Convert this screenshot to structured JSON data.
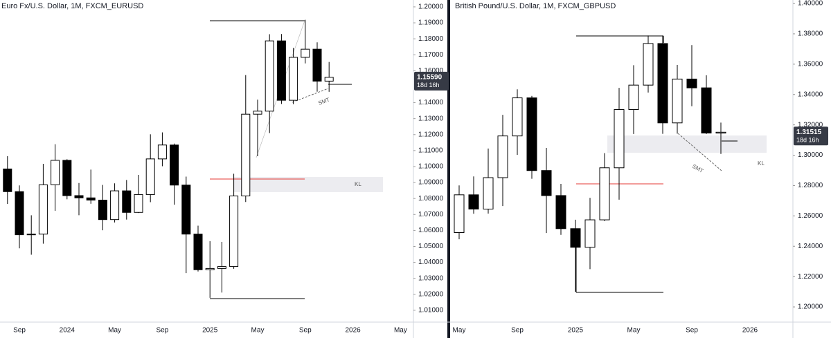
{
  "chart_data": [
    {
      "type": "candlestick",
      "title": "Euro Fx/U.S. Dollar, 1M, FXCM_EURUSD",
      "categories": [
        null,
        "Sep",
        null,
        null,
        null,
        "2024",
        null,
        null,
        null,
        "May",
        null,
        null,
        null,
        "Sep",
        null,
        null,
        null,
        "2025",
        null,
        null,
        null,
        "May",
        null,
        null,
        null,
        "Sep",
        null,
        null,
        null,
        "2026",
        null,
        null,
        null,
        "May"
      ],
      "open": [
        1.0985,
        1.0843,
        1.0573,
        1.0577,
        1.0886,
        1.1039,
        1.0818,
        1.0804,
        1.079,
        1.0668,
        1.0848,
        1.0713,
        1.0825,
        1.1048,
        1.1135,
        1.0884,
        1.0577,
        1.0354,
        1.0362,
        1.0374,
        1.0816,
        1.1328,
        1.1347,
        1.1787,
        1.1415,
        1.1684,
        1.1735,
        1.1535,
        null,
        null,
        null,
        null,
        null,
        null
      ],
      "high": [
        1.1065,
        1.0882,
        1.0695,
        1.1017,
        1.114,
        1.1046,
        1.0897,
        1.0981,
        1.0885,
        1.0895,
        1.0916,
        1.0948,
        1.1202,
        1.1214,
        1.1144,
        1.0937,
        1.063,
        1.0533,
        1.0528,
        1.0955,
        1.1573,
        1.1419,
        1.1829,
        1.183,
        1.1743,
        1.1919,
        1.1778,
        1.1655,
        null,
        null,
        null,
        null,
        null,
        null
      ],
      "low": [
        1.0766,
        1.0488,
        1.0448,
        1.0517,
        1.0723,
        1.0795,
        1.0695,
        1.0767,
        1.0601,
        1.065,
        1.0668,
        1.0709,
        1.0777,
        1.1002,
        1.0761,
        1.0333,
        1.0343,
        1.0178,
        1.0211,
        1.036,
        1.0778,
        1.1065,
        1.121,
        1.1392,
        1.1391,
        1.1646,
        1.1469,
        1.1468,
        null,
        null,
        null,
        null,
        null,
        null
      ],
      "close": [
        1.0843,
        1.0573,
        1.0577,
        1.0886,
        1.1039,
        1.0818,
        1.0804,
        1.079,
        1.0668,
        1.0848,
        1.0713,
        1.0825,
        1.1048,
        1.1135,
        1.0884,
        1.0577,
        1.0354,
        1.0362,
        1.0374,
        1.0816,
        1.1328,
        1.1347,
        1.1787,
        1.1415,
        1.1684,
        1.1735,
        1.1535,
        1.1559,
        null,
        null,
        null,
        null,
        null,
        null
      ],
      "up_color": "#ffffff",
      "down_color": "#000000",
      "ylim": [
        1.0026,
        1.2043
      ],
      "yticks": [
        {
          "value": 1.2,
          "label": "1.20000"
        },
        {
          "value": 1.19,
          "label": "1.19000"
        },
        {
          "value": 1.18,
          "label": "1.18000"
        },
        {
          "value": 1.17,
          "label": "1.17000"
        },
        {
          "value": 1.16,
          "label": "1.16000"
        },
        {
          "value": 1.14,
          "label": "1.14000"
        },
        {
          "value": 1.13,
          "label": "1.13000"
        },
        {
          "value": 1.12,
          "label": "1.12000"
        },
        {
          "value": 1.11,
          "label": "1.11000"
        },
        {
          "value": 1.1,
          "label": "1.10000"
        },
        {
          "value": 1.09,
          "label": "1.09000"
        },
        {
          "value": 1.08,
          "label": "1.08000"
        },
        {
          "value": 1.07,
          "label": "1.07000"
        },
        {
          "value": 1.06,
          "label": "1.06000"
        },
        {
          "value": 1.05,
          "label": "1.05000"
        },
        {
          "value": 1.04,
          "label": "1.04000"
        },
        {
          "value": 1.03,
          "label": "1.03000"
        },
        {
          "value": 1.02,
          "label": "1.02000"
        },
        {
          "value": 1.01,
          "label": "1.01000"
        }
      ],
      "last_price": {
        "value": 1.1559,
        "label": "1.15590"
      },
      "countdown": "18d 16h",
      "annotations": [
        "SMT",
        "KL"
      ]
    },
    {
      "type": "candlestick",
      "title": "British Pound/U.S. Dollar, 1M, FXCM_GBPUSD",
      "categories": [
        "May",
        null,
        null,
        null,
        "Sep",
        null,
        null,
        null,
        "2025",
        null,
        null,
        null,
        "May",
        null,
        null,
        null,
        "Sep",
        null,
        null,
        null,
        "2026",
        null
      ],
      "open": [
        1.249,
        1.2739,
        1.2645,
        1.2852,
        1.3127,
        1.3378,
        1.2899,
        1.2734,
        1.2516,
        1.2393,
        1.2574,
        1.2917,
        1.3301,
        1.3462,
        1.3736,
        1.3213,
        1.3502,
        1.3444,
        1.3146,
        null,
        null,
        null
      ],
      "high": [
        1.2801,
        1.286,
        1.3044,
        1.3266,
        1.3434,
        1.3391,
        1.3048,
        1.2811,
        1.2575,
        1.2719,
        1.3014,
        1.3444,
        1.3593,
        1.3789,
        1.3789,
        1.3595,
        1.3726,
        1.3527,
        1.3215,
        null,
        null,
        null
      ],
      "low": [
        1.2446,
        1.2614,
        1.2615,
        1.2665,
        1.3002,
        1.2845,
        1.2487,
        1.2475,
        1.21,
        1.2249,
        1.2566,
        1.2707,
        1.314,
        1.3413,
        1.3141,
        1.3142,
        1.3323,
        1.314,
        1.3008,
        null,
        null,
        null
      ],
      "close": [
        1.2739,
        1.2645,
        1.2852,
        1.3127,
        1.3378,
        1.2899,
        1.2734,
        1.2516,
        1.2393,
        1.2574,
        1.2917,
        1.3301,
        1.3462,
        1.3736,
        1.3213,
        1.3502,
        1.3444,
        1.3146,
        1.31515,
        null,
        null,
        null
      ],
      "up_color": "#ffffff",
      "down_color": "#000000",
      "ylim": [
        1.19,
        1.4023
      ],
      "yticks": [
        {
          "value": 1.4,
          "label": "1.40000"
        },
        {
          "value": 1.38,
          "label": "1.38000"
        },
        {
          "value": 1.36,
          "label": "1.36000"
        },
        {
          "value": 1.34,
          "label": "1.34000"
        },
        {
          "value": 1.32,
          "label": "1.32000"
        },
        {
          "value": 1.3,
          "label": "1.30000"
        },
        {
          "value": 1.28,
          "label": "1.28000"
        },
        {
          "value": 1.26,
          "label": "1.26000"
        },
        {
          "value": 1.24,
          "label": "1.24000"
        },
        {
          "value": 1.22,
          "label": "1.22000"
        },
        {
          "value": 1.2,
          "label": "1.20000"
        }
      ],
      "last_price": {
        "value": 1.31515,
        "label": "1.31515"
      },
      "countdown": "18d 16h",
      "annotations": [
        "SMT",
        "KL"
      ]
    }
  ]
}
